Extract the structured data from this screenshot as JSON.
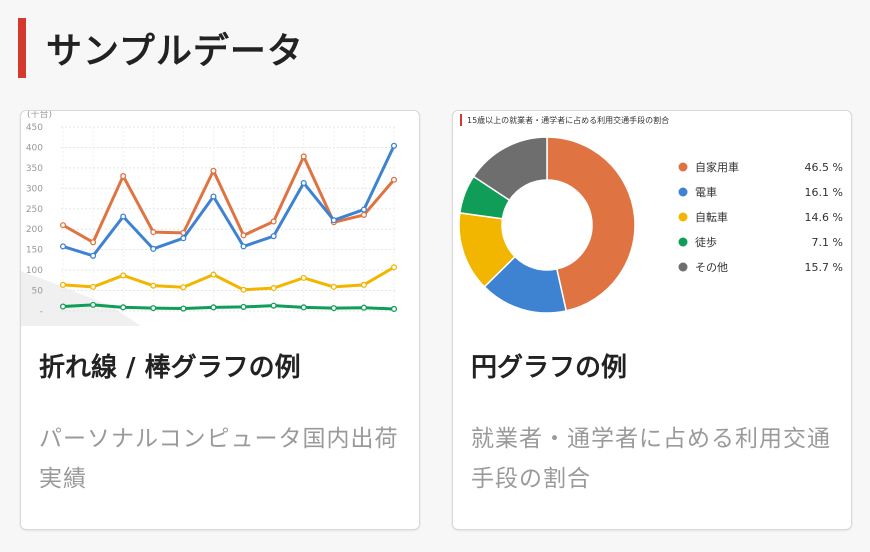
{
  "header": {
    "title": "サンプルデータ"
  },
  "cards": [
    {
      "heading": "折れ線 / 棒グラフの例",
      "description": "パーソナルコンピュータ国内出荷実績"
    },
    {
      "heading": "円グラフの例",
      "description": "就業者・通学者に占める利用交通手段の割合"
    }
  ],
  "colors": {
    "accent": "#d23a2f",
    "orange": "#e07342",
    "blue": "#3e82d2",
    "yellow": "#f2b500",
    "green": "#0f9d58",
    "gray": "#6e6e6e"
  },
  "chart_data": [
    {
      "type": "line",
      "unit_label": "(千台)",
      "ylim": [
        0,
        450
      ],
      "yticks": [
        "-",
        "50",
        "100",
        "150",
        "200",
        "250",
        "300",
        "350",
        "400",
        "450"
      ],
      "grid": true,
      "series": [
        {
          "values": [
            210,
            168,
            330,
            193,
            191,
            343,
            185,
            219,
            378,
            217,
            235,
            321
          ],
          "color": "#e07342"
        },
        {
          "values": [
            158,
            135,
            231,
            152,
            178,
            280,
            158,
            183,
            313,
            222,
            248,
            404
          ],
          "color": "#3e82d2"
        },
        {
          "values": [
            64,
            59,
            87,
            62,
            58,
            89,
            52,
            56,
            81,
            59,
            64,
            107
          ],
          "color": "#f2b500"
        },
        {
          "values": [
            11,
            15,
            9,
            7,
            6,
            9,
            10,
            13,
            9,
            7,
            8,
            5
          ],
          "color": "#0f9d58"
        }
      ]
    },
    {
      "type": "pie",
      "title": "15歳以上の就業者・通学者に占める利用交通手段の割合",
      "slices": [
        {
          "label": "自家用車",
          "value": 46.5,
          "display": "46.5 %",
          "color": "#e07342"
        },
        {
          "label": "電車",
          "value": 16.1,
          "display": "16.1 %",
          "color": "#3e82d2"
        },
        {
          "label": "自転車",
          "value": 14.6,
          "display": "14.6 %",
          "color": "#f2b500"
        },
        {
          "label": "徒歩",
          "value": 7.1,
          "display": "7.1 %",
          "color": "#0f9d58"
        },
        {
          "label": "その他",
          "value": 15.7,
          "display": "15.7 %",
          "color": "#6e6e6e"
        }
      ]
    }
  ]
}
